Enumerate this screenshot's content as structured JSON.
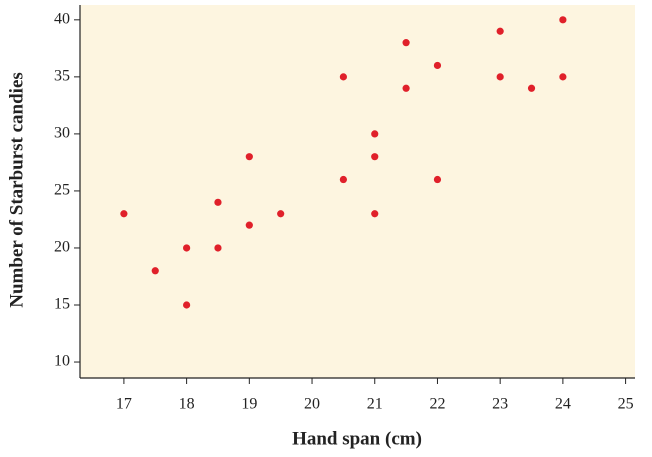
{
  "chart_data": {
    "type": "scatter",
    "x_label": "Hand span (cm)",
    "y_label": "Number of Starburst candies",
    "x": [
      17,
      17.5,
      18,
      18,
      18.5,
      18.5,
      19,
      19,
      19.5,
      20.5,
      20.5,
      21,
      21,
      21,
      21.5,
      21.5,
      22,
      22,
      23,
      23,
      23.5,
      24,
      24
    ],
    "values": [
      23,
      18,
      20,
      15,
      24,
      20,
      28,
      22,
      23,
      35,
      26,
      30,
      28,
      23,
      38,
      34,
      36,
      26,
      39,
      35,
      34,
      40,
      35
    ],
    "color": "#e0202a",
    "xlim": [
      16.3,
      25.15
    ],
    "xticks": [
      17,
      18,
      19,
      20,
      21,
      22,
      23,
      24,
      25
    ],
    "ylim": [
      8.6,
      41.3
    ],
    "yticks": [
      10,
      15,
      20,
      25,
      30,
      35,
      40
    ]
  }
}
